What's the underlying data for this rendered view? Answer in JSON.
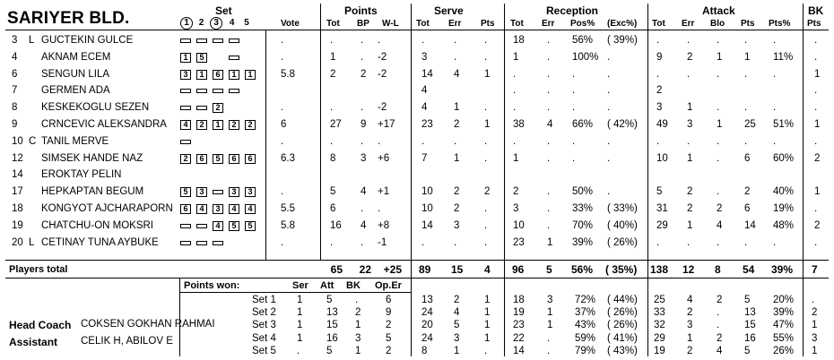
{
  "team": "SARIYER BLD.",
  "headers": {
    "set": "Set",
    "set_nums": [
      "1",
      "2",
      "3",
      "4",
      "5"
    ],
    "vote": "Vote",
    "points": "Points",
    "tot": "Tot",
    "bp": "BP",
    "wl": "W-L",
    "serve": "Serve",
    "s_tot": "Tot",
    "s_err": "Err",
    "s_pts": "Pts",
    "reception": "Reception",
    "r_tot": "Tot",
    "r_err": "Err",
    "r_pos": "Pos%",
    "r_exc": "(Exc%)",
    "attack": "Attack",
    "a_tot": "Tot",
    "a_err": "Err",
    "a_blo": "Blo",
    "a_pts": "Pts",
    "a_ptsp": "Pts%",
    "bk": "BK",
    "bk_pts": "Pts"
  },
  "players": [
    {
      "num": "3",
      "role": "L",
      "name": "GUCTEKIN GULCE",
      "sets": [
        "-",
        "-",
        "-",
        "-"
      ],
      "vote": ".",
      "p_tot": ".",
      "bp": ".",
      "wl": ".",
      "s_tot": ".",
      "s_err": ".",
      "s_pts": ".",
      "r_tot": "18",
      "r_err": ".",
      "r_pos": "56%",
      "r_exc": "( 39%)",
      "a_tot": ".",
      "a_err": ".",
      "a_blo": ".",
      "a_pts": ".",
      "a_ptsp": ".",
      "bk": "."
    },
    {
      "num": "4",
      "role": "",
      "name": "AKNAM ECEM",
      "sets": [
        "1",
        "5",
        "",
        "-"
      ],
      "vote": ".",
      "p_tot": "1",
      "bp": ".",
      "wl": "-2",
      "s_tot": "3",
      "s_err": ".",
      "s_pts": ".",
      "r_tot": "1",
      "r_err": ".",
      "r_pos": "100%",
      "r_exc": ".",
      "a_tot": "9",
      "a_err": "2",
      "a_blo": "1",
      "a_pts": "1",
      "a_ptsp": "11%",
      "bk": "."
    },
    {
      "num": "6",
      "role": "",
      "name": "SENGUN LILA",
      "sets": [
        "3",
        "1",
        "6",
        "1",
        "1"
      ],
      "vote": "5.8",
      "p_tot": "2",
      "bp": "2",
      "wl": "-2",
      "s_tot": "14",
      "s_err": "4",
      "s_pts": "1",
      "r_tot": ".",
      "r_err": ".",
      "r_pos": ".",
      "r_exc": ".",
      "a_tot": ".",
      "a_err": ".",
      "a_blo": ".",
      "a_pts": ".",
      "a_ptsp": ".",
      "bk": "1"
    },
    {
      "num": "7",
      "role": "",
      "name": "GERMEN ADA",
      "sets": [
        "-",
        "-",
        "-",
        "-"
      ],
      "vote": "",
      "p_tot": "",
      "bp": "",
      "wl": "",
      "s_tot": "4",
      "s_err": "",
      "s_pts": "",
      "r_tot": ".",
      "r_err": ".",
      "r_pos": ".",
      "r_exc": ".",
      "a_tot": "2",
      "a_err": "",
      "a_blo": "",
      "a_pts": "",
      "a_ptsp": "",
      "bk": "."
    },
    {
      "num": "8",
      "role": "",
      "name": "KESKEKOGLU SEZEN",
      "sets": [
        "-",
        "-",
        "2"
      ],
      "vote": ".",
      "p_tot": ".",
      "bp": ".",
      "wl": "-2",
      "s_tot": "4",
      "s_err": "1",
      "s_pts": ".",
      "r_tot": ".",
      "r_err": ".",
      "r_pos": ".",
      "r_exc": ".",
      "a_tot": "3",
      "a_err": "1",
      "a_blo": ".",
      "a_pts": ".",
      "a_ptsp": ".",
      "bk": "."
    },
    {
      "num": "9",
      "role": "",
      "name": "CRNCEVIC ALEKSANDRA",
      "sets": [
        "4",
        "2",
        "1",
        "2",
        "2"
      ],
      "vote": "6",
      "p_tot": "27",
      "bp": "9",
      "wl": "+17",
      "s_tot": "23",
      "s_err": "2",
      "s_pts": "1",
      "r_tot": "38",
      "r_err": "4",
      "r_pos": "66%",
      "r_exc": "( 42%)",
      "a_tot": "49",
      "a_err": "3",
      "a_blo": "1",
      "a_pts": "25",
      "a_ptsp": "51%",
      "bk": "1"
    },
    {
      "num": "10",
      "role": "C",
      "name": "TANIL MERVE",
      "sets": [
        "-"
      ],
      "vote": ".",
      "p_tot": ".",
      "bp": ".",
      "wl": ".",
      "s_tot": ".",
      "s_err": ".",
      "s_pts": ".",
      "r_tot": ".",
      "r_err": ".",
      "r_pos": ".",
      "r_exc": ".",
      "a_tot": ".",
      "a_err": ".",
      "a_blo": ".",
      "a_pts": ".",
      "a_ptsp": ".",
      "bk": "."
    },
    {
      "num": "12",
      "role": "",
      "name": "SIMSEK HANDE NAZ",
      "sets": [
        "2",
        "6",
        "5",
        "6",
        "6"
      ],
      "vote": "6.3",
      "p_tot": "8",
      "bp": "3",
      "wl": "+6",
      "s_tot": "7",
      "s_err": "1",
      "s_pts": ".",
      "r_tot": "1",
      "r_err": ".",
      "r_pos": ".",
      "r_exc": ".",
      "a_tot": "10",
      "a_err": "1",
      "a_blo": ".",
      "a_pts": "6",
      "a_ptsp": "60%",
      "bk": "2"
    },
    {
      "num": "14",
      "role": "",
      "name": "EROKTAY PELIN",
      "sets": [],
      "vote": "",
      "p_tot": "",
      "bp": "",
      "wl": "",
      "s_tot": "",
      "s_err": "",
      "s_pts": "",
      "r_tot": "",
      "r_err": "",
      "r_pos": "",
      "r_exc": "",
      "a_tot": "",
      "a_err": "",
      "a_blo": "",
      "a_pts": "",
      "a_ptsp": "",
      "bk": ""
    },
    {
      "num": "17",
      "role": "",
      "name": "HEPKAPTAN BEGUM",
      "sets": [
        "5",
        "3",
        "-",
        "3",
        "3"
      ],
      "vote": ".",
      "p_tot": "5",
      "bp": "4",
      "wl": "+1",
      "s_tot": "10",
      "s_err": "2",
      "s_pts": "2",
      "r_tot": "2",
      "r_err": ".",
      "r_pos": "50%",
      "r_exc": ".",
      "a_tot": "5",
      "a_err": "2",
      "a_blo": ".",
      "a_pts": "2",
      "a_ptsp": "40%",
      "bk": "1"
    },
    {
      "num": "18",
      "role": "",
      "name": "KONGYOT AJCHARAPORN",
      "sets": [
        "6",
        "4",
        "3",
        "4",
        "4"
      ],
      "vote": "5.5",
      "p_tot": "6",
      "bp": ".",
      "wl": ".",
      "s_tot": "10",
      "s_err": "2",
      "s_pts": ".",
      "r_tot": "3",
      "r_err": ".",
      "r_pos": "33%",
      "r_exc": "( 33%)",
      "a_tot": "31",
      "a_err": "2",
      "a_blo": "2",
      "a_pts": "6",
      "a_ptsp": "19%",
      "bk": "."
    },
    {
      "num": "19",
      "role": "",
      "name": "CHATCHU-ON MOKSRI",
      "sets": [
        "-",
        "-",
        "4",
        "5",
        "5"
      ],
      "vote": "5.8",
      "p_tot": "16",
      "bp": "4",
      "wl": "+8",
      "s_tot": "14",
      "s_err": "3",
      "s_pts": ".",
      "r_tot": "10",
      "r_err": ".",
      "r_pos": "70%",
      "r_exc": "( 40%)",
      "a_tot": "29",
      "a_err": "1",
      "a_blo": "4",
      "a_pts": "14",
      "a_ptsp": "48%",
      "bk": "2"
    },
    {
      "num": "20",
      "role": "L",
      "name": "CETINAY TUNA AYBUKE",
      "sets": [
        "-",
        "-",
        "-"
      ],
      "vote": ".",
      "p_tot": ".",
      "bp": ".",
      "wl": "-1",
      "s_tot": ".",
      "s_err": ".",
      "s_pts": ".",
      "r_tot": "23",
      "r_err": "1",
      "r_pos": "39%",
      "r_exc": "( 26%)",
      "a_tot": ".",
      "a_err": ".",
      "a_blo": ".",
      "a_pts": ".",
      "a_ptsp": ".",
      "bk": "."
    }
  ],
  "totals": {
    "label": "Players total",
    "p_tot": "65",
    "bp": "22",
    "wl": "+25",
    "s_tot": "89",
    "s_err": "15",
    "s_pts": "4",
    "r_tot": "96",
    "r_err": "5",
    "r_pos": "56%",
    "r_exc": "( 35%)",
    "a_tot": "138",
    "a_err": "12",
    "a_blo": "8",
    "a_pts": "54",
    "a_ptsp": "39%",
    "bk": "7"
  },
  "points_won": {
    "label": "Points won:",
    "ser": "Ser",
    "att": "Att",
    "bk": "BK",
    "op_er": "Op.Er"
  },
  "sets": [
    {
      "label": "Set 1",
      "ser": "1",
      "att": "5",
      "bk": ".",
      "op": "6",
      "s_tot": "13",
      "s_err": "2",
      "s_pts": "1",
      "r_tot": "18",
      "r_err": "3",
      "r_pos": "72%",
      "r_exc": "( 44%)",
      "a_tot": "25",
      "a_err": "4",
      "a_blo": "2",
      "a_pts": "5",
      "a_ptsp": "20%"
    },
    {
      "label": "Set 2",
      "ser": "1",
      "att": "13",
      "bk": "2",
      "op": "9",
      "s_tot": "24",
      "s_err": "4",
      "s_pts": "1",
      "r_tot": "19",
      "r_err": "1",
      "r_pos": "37%",
      "r_exc": "( 26%)",
      "a_tot": "33",
      "a_err": "2",
      "a_blo": ".",
      "a_pts": "13",
      "a_ptsp": "39%"
    },
    {
      "label": "Set 3",
      "ser": "1",
      "att": "15",
      "bk": "1",
      "op": "2",
      "s_tot": "20",
      "s_err": "5",
      "s_pts": "1",
      "r_tot": "23",
      "r_err": "1",
      "r_pos": "43%",
      "r_exc": "( 26%)",
      "a_tot": "32",
      "a_err": "3",
      "a_blo": ".",
      "a_pts": "15",
      "a_ptsp": "47%"
    },
    {
      "label": "Set 4",
      "ser": "1",
      "att": "16",
      "bk": "3",
      "op": "5",
      "s_tot": "24",
      "s_err": "3",
      "s_pts": "1",
      "r_tot": "22",
      "r_err": ".",
      "r_pos": "59%",
      "r_exc": "( 41%)",
      "a_tot": "29",
      "a_err": "1",
      "a_blo": "2",
      "a_pts": "16",
      "a_ptsp": "55%"
    },
    {
      "label": "Set 5",
      "ser": ".",
      "att": "5",
      "bk": "1",
      "op": "2",
      "s_tot": "8",
      "s_err": "1",
      "s_pts": ".",
      "r_tot": "14",
      "r_err": ".",
      "r_pos": "79%",
      "r_exc": "( 43%)",
      "a_tot": "19",
      "a_err": "2",
      "a_blo": "4",
      "a_pts": "5",
      "a_ptsp": "26%"
    }
  ],
  "coach": {
    "head_label": "Head Coach",
    "head_name": "COKSEN GOKHAN RAHMAI",
    "asst_label": "Assistant",
    "asst_name": "CELIK H, ABILOV E"
  }
}
